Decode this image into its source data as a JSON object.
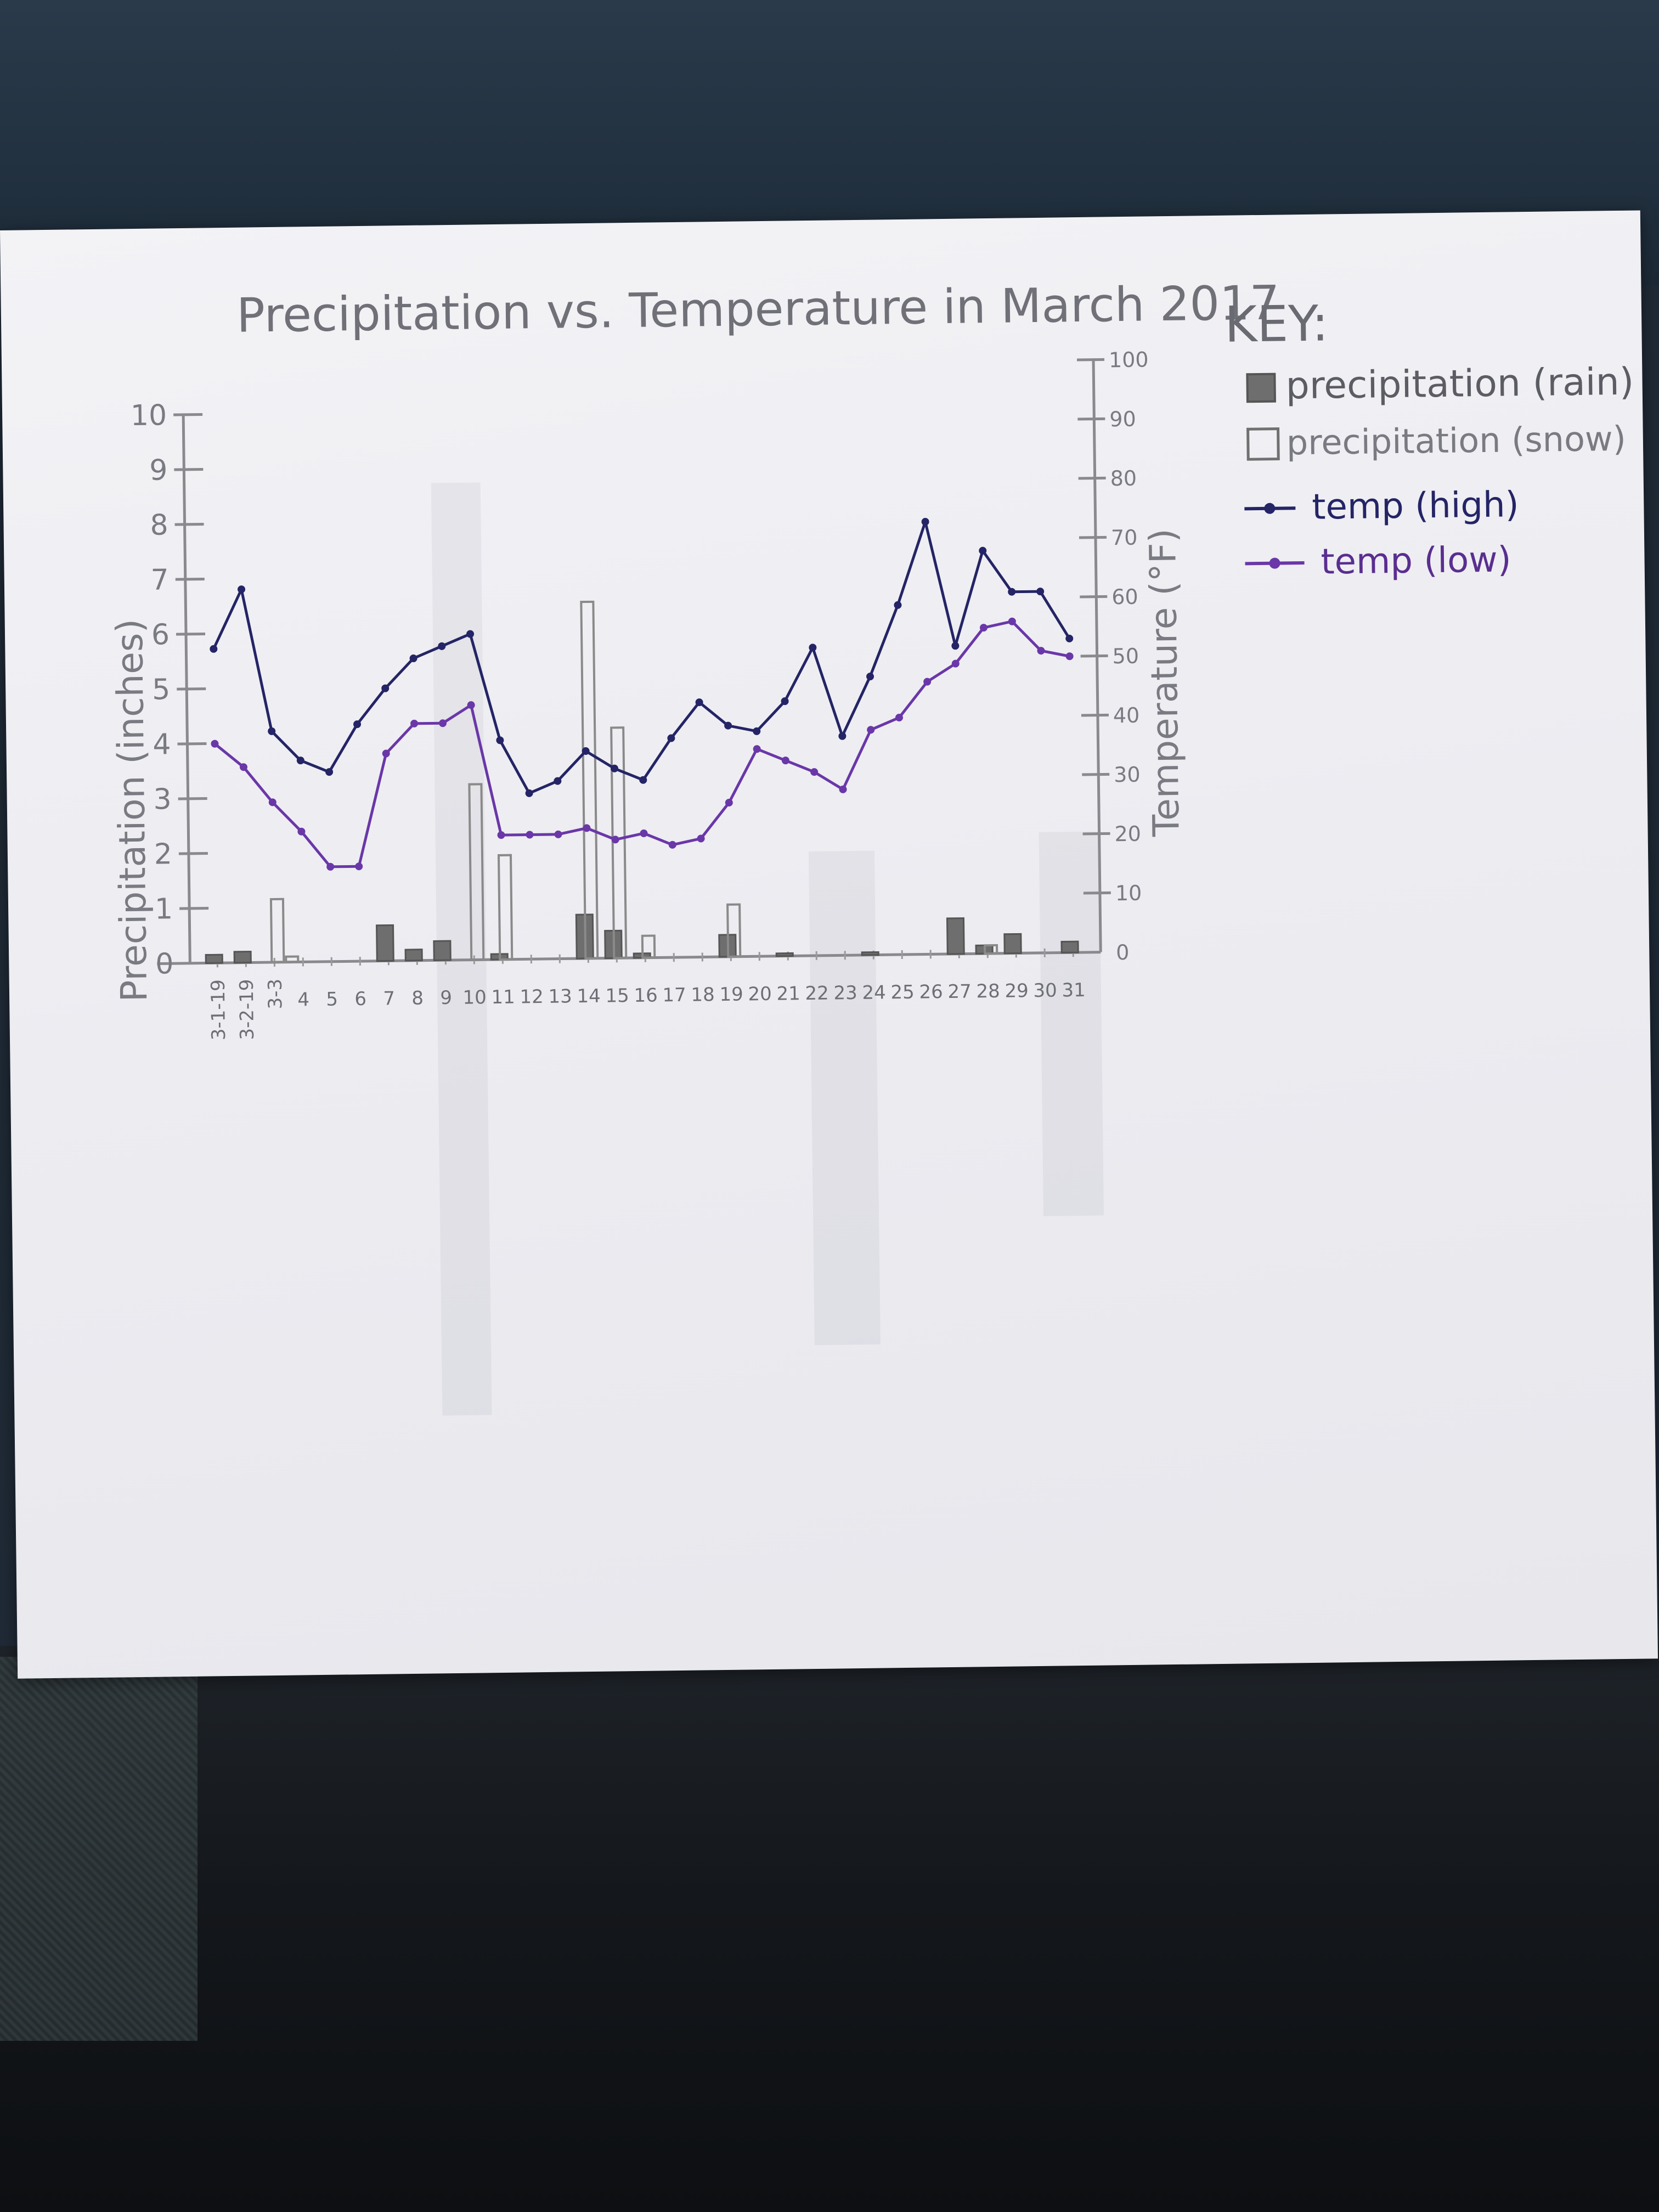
{
  "chart_data": {
    "type": "bar+line",
    "title": "Precipitation vs. Temperature in March 2017",
    "ylabel_left": "Precipitation (inches)",
    "ylabel_right": "Temperature (°F)",
    "ylim_left": [
      0,
      10
    ],
    "ylim_right": [
      0,
      100
    ],
    "left_ticks": [
      "0",
      "1",
      "2",
      "3",
      "4",
      "5",
      "6",
      "7",
      "8",
      "9",
      "10"
    ],
    "right_ticks": [
      "0",
      "10",
      "20",
      "30",
      "40",
      "50",
      "60",
      "70",
      "80",
      "90",
      "100"
    ],
    "x_tick_labels": [
      "3-1-19",
      "3-2-19",
      "3-3",
      "4",
      "5",
      "6",
      "7",
      "8",
      "9",
      "10",
      "11",
      "12",
      "13",
      "14",
      "15",
      "16",
      "17",
      "18",
      "19",
      "20",
      "21",
      "22",
      "23",
      "24",
      "25",
      "26",
      "27",
      "28",
      "29",
      "30",
      "31"
    ],
    "days": [
      1,
      2,
      3,
      4,
      5,
      6,
      7,
      8,
      9,
      10,
      11,
      12,
      13,
      14,
      15,
      16,
      17,
      18,
      19,
      20,
      21,
      22,
      23,
      24,
      25,
      26,
      27,
      28,
      29,
      30,
      31
    ],
    "legend_title": "KEY:",
    "legend_labels": [
      "precipitation (rain)",
      "precipitation (snow)",
      "temp (high)",
      "temp (low)"
    ],
    "series": [
      {
        "kind": "bars",
        "color": "#6e6e6e",
        "filled": true,
        "points": [
          {
            "day": 1,
            "value": 0.15
          },
          {
            "day": 2,
            "value": 0.2
          },
          {
            "day": 7,
            "value": 0.65
          },
          {
            "day": 8,
            "value": 0.2
          },
          {
            "day": 9,
            "value": 0.35
          },
          {
            "day": 11,
            "value": 0.1
          },
          {
            "day": 14,
            "value": 0.8
          },
          {
            "day": 15,
            "value": 0.5
          },
          {
            "day": 16,
            "value": 0.08
          },
          {
            "day": 19,
            "value": 0.4
          },
          {
            "day": 21,
            "value": 0.05
          },
          {
            "day": 24,
            "value": 0.05
          },
          {
            "day": 27,
            "value": 0.65
          },
          {
            "day": 28,
            "value": 0.15
          },
          {
            "day": 29,
            "value": 0.35
          },
          {
            "day": 31,
            "value": 0.2
          }
        ]
      },
      {
        "kind": "bars",
        "color": "#8a8a8a",
        "filled": false,
        "points": [
          {
            "day": 3,
            "value": 1.15
          },
          {
            "day": 3.5,
            "value": 0.1
          },
          {
            "day": 10,
            "value": 3.2
          },
          {
            "day": 11,
            "value": 1.9
          },
          {
            "day": 14,
            "value": 6.5
          },
          {
            "day": 15,
            "value": 4.2
          },
          {
            "day": 16,
            "value": 0.4
          },
          {
            "day": 19,
            "value": 0.95
          },
          {
            "day": 28,
            "value": 0.15
          }
        ]
      },
      {
        "kind": "line",
        "color": "#242466",
        "values": [
          53,
          63,
          39,
          34,
          32,
          40,
          46,
          51,
          53,
          55,
          37,
          28,
          30,
          35,
          32,
          30,
          37,
          43,
          39,
          38,
          43,
          52,
          37,
          47,
          59,
          73,
          52,
          68,
          61,
          61,
          53
        ]
      },
      {
        "kind": "line",
        "color": "#6a37a8",
        "values": [
          37,
          33,
          27,
          22,
          16,
          16,
          35,
          40,
          40,
          43,
          21,
          21,
          21,
          22,
          20,
          21,
          19,
          20,
          26,
          35,
          33,
          31,
          28,
          38,
          40,
          46,
          49,
          55,
          56,
          51,
          50
        ]
      }
    ]
  }
}
